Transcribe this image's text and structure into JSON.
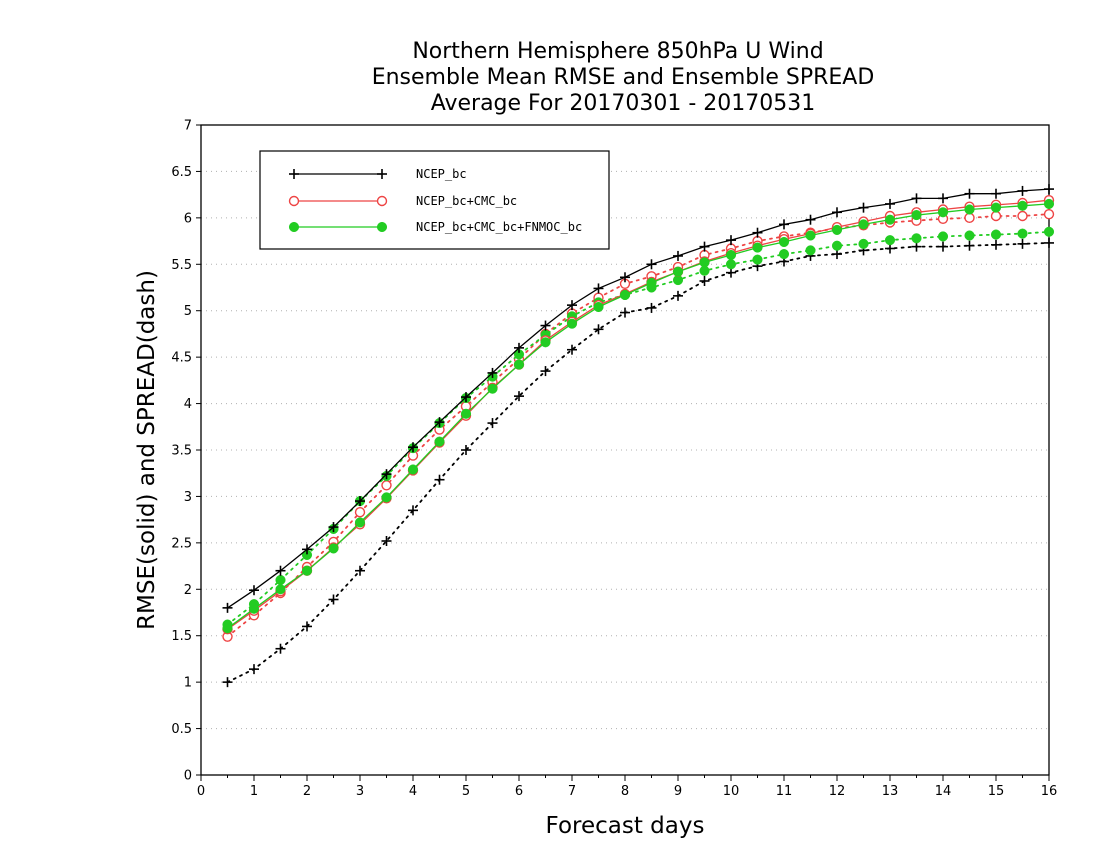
{
  "chart_data": {
    "type": "line",
    "title": [
      "Northern Hemisphere 850hPa U Wind",
      "Ensemble Mean RMSE and Ensemble SPREAD",
      "Average For 20170301 - 20170531"
    ],
    "xlabel": "Forecast days",
    "ylabel": "RMSE(solid) and SPREAD(dash)",
    "xlim": [
      0,
      16
    ],
    "ylim": [
      0,
      7
    ],
    "x_ticks": [
      "0",
      "1",
      "2",
      "3",
      "4",
      "5",
      "6",
      "7",
      "8",
      "9",
      "10",
      "11",
      "12",
      "13",
      "14",
      "15",
      "16"
    ],
    "y_ticks": [
      "0",
      "0.5",
      "1",
      "1.5",
      "2",
      "2.5",
      "3",
      "3.5",
      "4",
      "4.5",
      "5",
      "5.5",
      "6",
      "6.5",
      "7"
    ],
    "grid": "horizontal dotted",
    "legend_position": "top-left",
    "x": [
      0.5,
      1,
      1.5,
      2,
      2.5,
      3,
      3.5,
      4,
      4.5,
      5,
      5.5,
      6,
      6.5,
      7,
      7.5,
      8,
      8.5,
      9,
      9.5,
      10,
      10.5,
      11,
      11.5,
      12,
      12.5,
      13,
      13.5,
      14,
      14.5,
      15,
      15.5,
      16
    ],
    "series": [
      {
        "name": "NCEP_bc",
        "color": "#000000",
        "marker": "plus",
        "rmse": [
          1.8,
          1.99,
          2.2,
          2.43,
          2.67,
          2.95,
          3.24,
          3.53,
          3.8,
          4.07,
          4.33,
          4.6,
          4.84,
          5.06,
          5.24,
          5.36,
          5.5,
          5.59,
          5.69,
          5.76,
          5.84,
          5.93,
          5.98,
          6.06,
          6.11,
          6.15,
          6.21,
          6.21,
          6.26,
          6.26,
          6.29,
          6.31
        ],
        "spread": [
          1.0,
          1.14,
          1.36,
          1.6,
          1.89,
          2.2,
          2.52,
          2.85,
          3.18,
          3.5,
          3.79,
          4.08,
          4.35,
          4.58,
          4.8,
          4.98,
          5.03,
          5.16,
          5.32,
          5.41,
          5.48,
          5.53,
          5.59,
          5.61,
          5.65,
          5.67,
          5.69,
          5.69,
          5.7,
          5.71,
          5.72,
          5.73
        ]
      },
      {
        "name": "NCEP_bc+CMC_bc",
        "color": "#ee4444",
        "marker": "open-circle",
        "rmse": [
          1.57,
          1.77,
          1.98,
          2.2,
          2.45,
          2.7,
          2.98,
          3.28,
          3.58,
          3.87,
          4.17,
          4.42,
          4.68,
          4.88,
          5.06,
          5.18,
          5.31,
          5.42,
          5.53,
          5.62,
          5.7,
          5.77,
          5.83,
          5.9,
          5.96,
          6.02,
          6.06,
          6.09,
          6.12,
          6.14,
          6.16,
          6.19
        ],
        "spread": [
          1.49,
          1.72,
          1.96,
          2.24,
          2.51,
          2.83,
          3.12,
          3.44,
          3.72,
          3.97,
          4.23,
          4.48,
          4.75,
          4.97,
          5.14,
          5.29,
          5.37,
          5.47,
          5.6,
          5.67,
          5.75,
          5.8,
          5.84,
          5.89,
          5.92,
          5.95,
          5.97,
          5.99,
          6.0,
          6.02,
          6.02,
          6.04
        ]
      },
      {
        "name": "NCEP_bc+CMC_bc+FNMOC_bc",
        "color": "#22cc22",
        "marker": "filled-circle",
        "rmse": [
          1.58,
          1.79,
          2.0,
          2.2,
          2.44,
          2.72,
          2.99,
          3.29,
          3.59,
          3.89,
          4.16,
          4.42,
          4.66,
          4.86,
          5.04,
          5.17,
          5.3,
          5.42,
          5.52,
          5.6,
          5.68,
          5.74,
          5.81,
          5.87,
          5.93,
          5.98,
          6.03,
          6.06,
          6.09,
          6.11,
          6.13,
          6.15
        ],
        "spread": [
          1.62,
          1.84,
          2.1,
          2.37,
          2.65,
          2.95,
          3.22,
          3.52,
          3.79,
          4.06,
          4.29,
          4.53,
          4.74,
          4.94,
          5.09,
          5.17,
          5.25,
          5.33,
          5.43,
          5.5,
          5.55,
          5.61,
          5.65,
          5.7,
          5.72,
          5.76,
          5.78,
          5.8,
          5.81,
          5.82,
          5.83,
          5.85
        ]
      }
    ]
  }
}
